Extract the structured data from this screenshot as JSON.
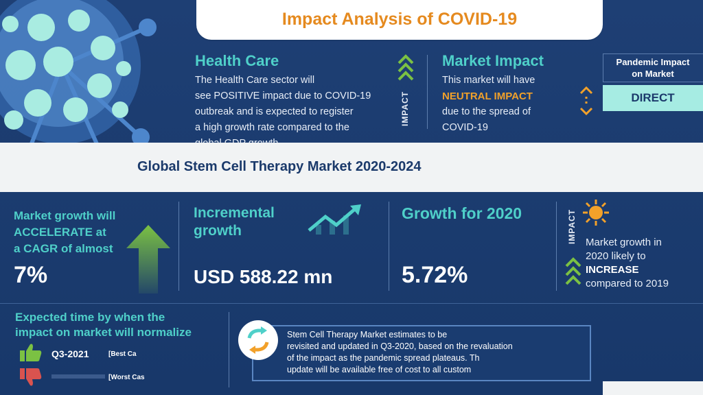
{
  "header": {
    "title": "Impact Analysis of COVID-19"
  },
  "health_care": {
    "title": "Health Care",
    "lines": [
      "The Health Care sector will",
      "see POSITIVE impact due to COVID-19",
      "outbreak and is expected to register",
      "a high growth rate compared to the",
      "global GDP growth"
    ]
  },
  "impact_label": "IMPACT",
  "market_impact": {
    "title": "Market Impact",
    "line1": "This market will have",
    "highlight": "NEUTRAL IMPACT",
    "line3": "due to the spread of",
    "line4": "COVID-19"
  },
  "pandemic": {
    "label_line1": "Pandemic Impact",
    "label_line2": "on Market",
    "value": "DIRECT"
  },
  "band": {
    "title": "Global Stem Cell Therapy Market 2020-2024"
  },
  "growth_accel": {
    "line1": "Market growth will",
    "line2": "ACCELERATE at",
    "line3": "a CAGR of almost",
    "value": "7%"
  },
  "incremental": {
    "line1": "Incremental",
    "line2": "growth",
    "value": "USD 588.22 mn"
  },
  "growth_2020": {
    "title": "Growth for 2020",
    "value": "5.72%"
  },
  "impact_2020": {
    "label": "IMPACT",
    "line1": "Market growth in",
    "line2": "2020 likely to",
    "highlight": "INCREASE",
    "line4": "compared to 2019"
  },
  "normalize": {
    "line1": "Expected time by when the",
    "line2": "impact on market will normalize",
    "best_value": "Q3-2021",
    "best_label": "[Best Ca",
    "worst_label": "[Worst Cas"
  },
  "note": {
    "lines": [
      "Stem Cell Therapy Market estimates to be",
      "revisited and updated in Q3-2020, based on the revaluation",
      "of the impact as the pandemic spread plateaus. Th",
      "update will be available free of cost to all custom"
    ]
  },
  "icons": [
    "virus-icon",
    "chevron-up-icon",
    "updown-arrows-icon",
    "trend-up-icon",
    "sun-icon",
    "thumbs-up-icon",
    "thumbs-down-icon",
    "refresh-icon",
    "big-arrow-up-icon"
  ],
  "colors": {
    "navy": "#1b3a6b",
    "teal": "#4fd0c9",
    "orange": "#e58a1f",
    "green": "#7bc143",
    "red": "#d9534f"
  }
}
